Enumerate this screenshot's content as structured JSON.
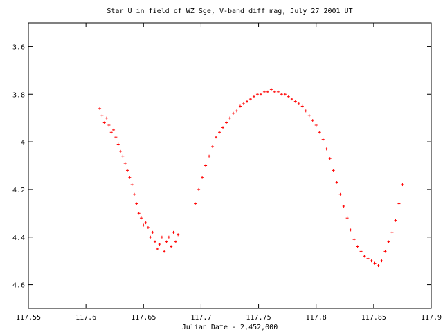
{
  "chart_data": {
    "type": "scatter",
    "title": "Star U in field of WZ Sge, V-band diff mag, July 27 2001 UT",
    "xlabel": "Julian Date - 2,452,000",
    "ylabel": "",
    "xlim": [
      117.55,
      117.9
    ],
    "ylim": [
      4.7,
      3.5
    ],
    "y_inverted": true,
    "x_ticks": [
      117.55,
      117.6,
      117.65,
      117.7,
      117.75,
      117.8,
      117.85,
      117.9
    ],
    "x_tick_labels": [
      "117.55",
      "117.6",
      "117.65",
      "117.7",
      "117.75",
      "117.8",
      "117.85",
      "117.9"
    ],
    "y_ticks": [
      3.6,
      3.8,
      4.0,
      4.2,
      4.4,
      4.6
    ],
    "y_tick_labels": [
      "3.6",
      "3.8",
      "4",
      "4.2",
      "4.4",
      "4.6"
    ],
    "grid": false,
    "marker": "+",
    "marker_color": "#ff0000",
    "series": [
      {
        "x": [
          117.612,
          117.614,
          117.616,
          117.618,
          117.62,
          117.622,
          117.624,
          117.626,
          117.628,
          117.63,
          117.632,
          117.634,
          117.636,
          117.638,
          117.64,
          117.642,
          117.644,
          117.646,
          117.648,
          117.65,
          117.652,
          117.654,
          117.656,
          117.658,
          117.66,
          117.662,
          117.664,
          117.666,
          117.668,
          117.67,
          117.672,
          117.674,
          117.676,
          117.678,
          117.68,
          117.695,
          117.698,
          117.701,
          117.704,
          117.707,
          117.71,
          117.713,
          117.716,
          117.719,
          117.722,
          117.725,
          117.728,
          117.731,
          117.734,
          117.737,
          117.74,
          117.743,
          117.746,
          117.749,
          117.752,
          117.755,
          117.758,
          117.761,
          117.764,
          117.767,
          117.77,
          117.773,
          117.776,
          117.779,
          117.782,
          117.785,
          117.788,
          117.791,
          117.794,
          117.797,
          117.8,
          117.803,
          117.806,
          117.809,
          117.812,
          117.815,
          117.818,
          117.821,
          117.824,
          117.827,
          117.83,
          117.833,
          117.836,
          117.839,
          117.842,
          117.845,
          117.848,
          117.851,
          117.854,
          117.857,
          117.86,
          117.863,
          117.866,
          117.869,
          117.872,
          117.875
        ],
        "y": [
          3.86,
          3.89,
          3.92,
          3.9,
          3.93,
          3.96,
          3.95,
          3.98,
          4.01,
          4.04,
          4.06,
          4.09,
          4.12,
          4.15,
          4.18,
          4.22,
          4.26,
          4.3,
          4.32,
          4.35,
          4.34,
          4.36,
          4.4,
          4.38,
          4.42,
          4.45,
          4.43,
          4.4,
          4.46,
          4.42,
          4.4,
          4.44,
          4.38,
          4.42,
          4.39,
          4.26,
          4.2,
          4.15,
          4.1,
          4.06,
          4.02,
          3.98,
          3.96,
          3.94,
          3.92,
          3.9,
          3.88,
          3.87,
          3.85,
          3.84,
          3.83,
          3.82,
          3.81,
          3.8,
          3.8,
          3.79,
          3.79,
          3.78,
          3.79,
          3.79,
          3.8,
          3.8,
          3.81,
          3.82,
          3.83,
          3.84,
          3.85,
          3.87,
          3.89,
          3.91,
          3.93,
          3.96,
          3.99,
          4.03,
          4.07,
          4.12,
          4.17,
          4.22,
          4.27,
          4.32,
          4.37,
          4.41,
          4.44,
          4.46,
          4.48,
          4.49,
          4.5,
          4.51,
          4.52,
          4.5,
          4.46,
          4.42,
          4.38,
          4.33,
          4.26,
          4.18
        ]
      }
    ]
  }
}
